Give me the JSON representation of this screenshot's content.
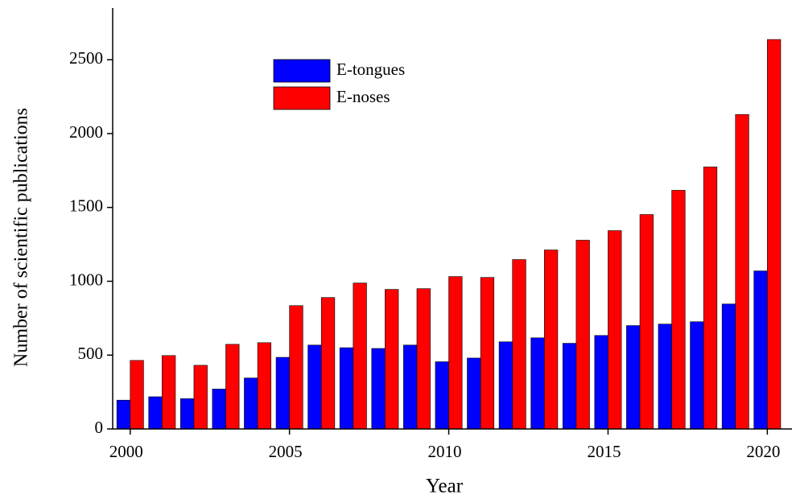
{
  "chart_data": {
    "type": "bar",
    "x_label": "Year",
    "y_label": "Number of scientific publications",
    "x": [
      2000,
      2001,
      2002,
      2003,
      2004,
      2005,
      2006,
      2007,
      2008,
      2009,
      2010,
      2011,
      2012,
      2013,
      2014,
      2015,
      2016,
      2017,
      2018,
      2019,
      2020
    ],
    "series": [
      {
        "name": "E-tongues",
        "color": "#0000ff",
        "values": [
          195,
          218,
          205,
          270,
          345,
          485,
          568,
          550,
          545,
          568,
          455,
          480,
          590,
          617,
          580,
          633,
          700,
          710,
          726,
          846,
          1070
        ]
      },
      {
        "name": "E-noses",
        "color": "#ff0000",
        "values": [
          464,
          497,
          431,
          573,
          584,
          835,
          890,
          988,
          945,
          950,
          1032,
          1026,
          1147,
          1212,
          1278,
          1343,
          1452,
          1616,
          1774,
          2129,
          2637
        ]
      }
    ],
    "xlim": [
      1999.45,
      2020.8
    ],
    "xticks": [
      2000,
      2005,
      2010,
      2015,
      2020
    ],
    "ylim": [
      0,
      2850
    ],
    "yticks": [
      0,
      500,
      1000,
      1500,
      2000,
      2500
    ],
    "grid": false,
    "legend": "upper left"
  }
}
